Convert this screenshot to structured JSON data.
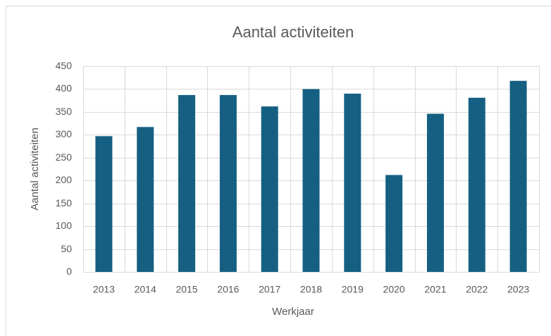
{
  "chart_data": {
    "type": "bar",
    "title": "Aantal activiteiten",
    "x_label": "Werkjaar",
    "y_label": "Aantal activiteiten",
    "categories": [
      "2013",
      "2014",
      "2015",
      "2016",
      "2017",
      "2018",
      "2019",
      "2020",
      "2021",
      "2022",
      "2023"
    ],
    "values": [
      297,
      317,
      387,
      387,
      362,
      400,
      390,
      212,
      346,
      381,
      418
    ],
    "color": "#156082",
    "ylim": [
      0,
      450
    ],
    "yticks": [
      0,
      50,
      100,
      150,
      200,
      250,
      300,
      350,
      400,
      450
    ],
    "grid": true
  }
}
